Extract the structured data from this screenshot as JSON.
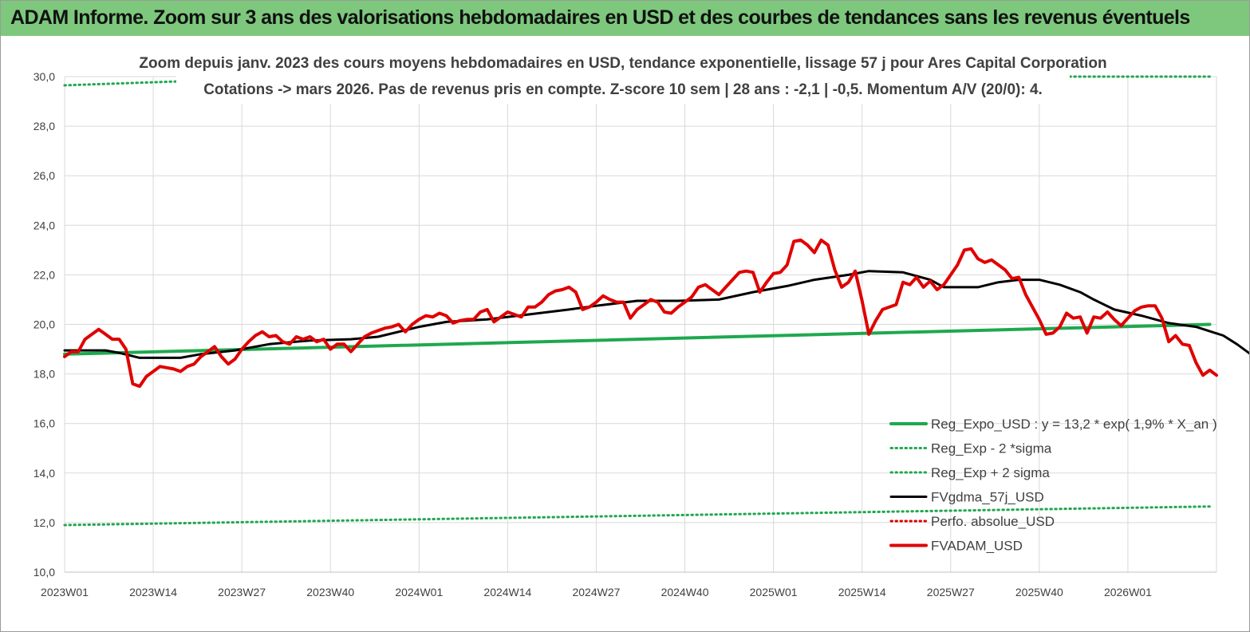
{
  "banner": {
    "title": "ADAM Informe. Zoom sur 3 ans des valorisations hebdomadaires en USD et des courbes de tendances sans les revenus éventuels"
  },
  "chart_data": {
    "type": "line",
    "title": "Zoom depuis janv.  2023 des cours moyens  hebdomadaires en USD, tendance exponentielle, lissage 57  j pour Ares Capital Corporation",
    "subtitle": "Cotations -> mars 2026. Pas de revenus pris en  compte. Z-score 10 sem  | 28 ans : -2,1  | -0,5. Momentum A/V (20/0): 4.",
    "xlabel": "",
    "ylabel": "",
    "ylim": [
      10,
      30
    ],
    "yticks": [
      "10,0",
      "12,0",
      "14,0",
      "16,0",
      "18,0",
      "20,0",
      "22,0",
      "24,0",
      "26,0",
      "28,0",
      "30,0"
    ],
    "x_tick_labels": [
      "2023W01",
      "2023W14",
      "2023W27",
      "2023W40",
      "2024W01",
      "2024W14",
      "2024W27",
      "2024W40",
      "2025W01",
      "2025W14",
      "2025W27",
      "2025W40",
      "2026W01"
    ],
    "weeks_count": 169,
    "grid": true,
    "legend_placement": "bottom-right",
    "series": [
      {
        "name": "Reg_Expo_USD : y = 13,2 * exp( 1,9% *  X_an )",
        "color": "#1fa84f",
        "style": "solid-thick",
        "points": [
          [
            0,
            18.8
          ],
          [
            168,
            20.0
          ]
        ]
      },
      {
        "name": "Reg_Exp - 2 *sigma",
        "color": "#1fa84f",
        "style": "dotted",
        "points": [
          [
            0,
            11.9
          ],
          [
            168,
            12.65
          ]
        ]
      },
      {
        "name": "Reg_Exp + 2 sigma",
        "color": "#1fa84f",
        "style": "dotted",
        "points": [
          [
            0,
            29.65
          ],
          [
            16,
            29.8
          ],
          [
            148,
            30.0
          ],
          [
            168,
            30.0
          ]
        ]
      },
      {
        "name": "FVgdma_57j_USD",
        "color": "#000000",
        "style": "solid",
        "points": [
          [
            0,
            18.95
          ],
          [
            6,
            18.95
          ],
          [
            8,
            18.85
          ],
          [
            11,
            18.65
          ],
          [
            17,
            18.65
          ],
          [
            20,
            18.8
          ],
          [
            25,
            18.95
          ],
          [
            30,
            19.2
          ],
          [
            36,
            19.35
          ],
          [
            42,
            19.4
          ],
          [
            46,
            19.5
          ],
          [
            52,
            19.9
          ],
          [
            56,
            20.1
          ],
          [
            62,
            20.2
          ],
          [
            68,
            20.4
          ],
          [
            74,
            20.6
          ],
          [
            78,
            20.75
          ],
          [
            84,
            20.95
          ],
          [
            90,
            20.95
          ],
          [
            96,
            21.0
          ],
          [
            101,
            21.3
          ],
          [
            106,
            21.55
          ],
          [
            110,
            21.8
          ],
          [
            115,
            22.0
          ],
          [
            118,
            22.15
          ],
          [
            123,
            22.1
          ],
          [
            127,
            21.8
          ],
          [
            129,
            21.5
          ],
          [
            134,
            21.5
          ],
          [
            137,
            21.7
          ],
          [
            140,
            21.8
          ],
          [
            143,
            21.8
          ],
          [
            146,
            21.6
          ],
          [
            149,
            21.3
          ],
          [
            151,
            21.0
          ],
          [
            154,
            20.6
          ],
          [
            158,
            20.35
          ],
          [
            162,
            20.05
          ],
          [
            166,
            19.9
          ],
          [
            170,
            19.55
          ],
          [
            172,
            19.2
          ],
          [
            174,
            18.8
          ],
          [
            176,
            18.65
          ]
        ]
      },
      {
        "name": "Perfo. absolue_USD",
        "color": "#e00000",
        "style": "dotted",
        "points": []
      },
      {
        "name": "FVADAM_USD",
        "color": "#e00000",
        "style": "solid-thick",
        "points": [
          [
            0,
            18.7
          ],
          [
            1,
            18.9
          ],
          [
            2,
            18.9
          ],
          [
            3,
            19.4
          ],
          [
            4,
            19.6
          ],
          [
            5,
            19.8
          ],
          [
            6,
            19.6
          ],
          [
            7,
            19.4
          ],
          [
            8,
            19.4
          ],
          [
            9,
            19.0
          ],
          [
            10,
            17.6
          ],
          [
            11,
            17.5
          ],
          [
            12,
            17.9
          ],
          [
            13,
            18.1
          ],
          [
            14,
            18.3
          ],
          [
            15,
            18.25
          ],
          [
            16,
            18.2
          ],
          [
            17,
            18.1
          ],
          [
            18,
            18.3
          ],
          [
            19,
            18.4
          ],
          [
            20,
            18.7
          ],
          [
            21,
            18.9
          ],
          [
            22,
            19.1
          ],
          [
            23,
            18.7
          ],
          [
            24,
            18.4
          ],
          [
            25,
            18.6
          ],
          [
            26,
            19.0
          ],
          [
            27,
            19.3
          ],
          [
            28,
            19.55
          ],
          [
            29,
            19.7
          ],
          [
            30,
            19.5
          ],
          [
            31,
            19.55
          ],
          [
            32,
            19.3
          ],
          [
            33,
            19.2
          ],
          [
            34,
            19.5
          ],
          [
            35,
            19.4
          ],
          [
            36,
            19.5
          ],
          [
            37,
            19.3
          ],
          [
            38,
            19.4
          ],
          [
            39,
            19.0
          ],
          [
            40,
            19.2
          ],
          [
            41,
            19.2
          ],
          [
            42,
            18.9
          ],
          [
            43,
            19.2
          ],
          [
            44,
            19.5
          ],
          [
            45,
            19.65
          ],
          [
            46,
            19.75
          ],
          [
            47,
            19.85
          ],
          [
            48,
            19.9
          ],
          [
            49,
            20.0
          ],
          [
            50,
            19.7
          ],
          [
            51,
            20.0
          ],
          [
            52,
            20.2
          ],
          [
            53,
            20.35
          ],
          [
            54,
            20.3
          ],
          [
            55,
            20.45
          ],
          [
            56,
            20.35
          ],
          [
            57,
            20.05
          ],
          [
            58,
            20.15
          ],
          [
            59,
            20.2
          ],
          [
            60,
            20.2
          ],
          [
            61,
            20.5
          ],
          [
            62,
            20.6
          ],
          [
            63,
            20.1
          ],
          [
            64,
            20.3
          ],
          [
            65,
            20.5
          ],
          [
            66,
            20.4
          ],
          [
            67,
            20.3
          ],
          [
            68,
            20.7
          ],
          [
            69,
            20.7
          ],
          [
            70,
            20.9
          ],
          [
            71,
            21.2
          ],
          [
            72,
            21.35
          ],
          [
            73,
            21.4
          ],
          [
            74,
            21.5
          ],
          [
            75,
            21.3
          ],
          [
            76,
            20.6
          ],
          [
            77,
            20.7
          ],
          [
            78,
            20.9
          ],
          [
            79,
            21.15
          ],
          [
            80,
            21.0
          ],
          [
            81,
            20.9
          ],
          [
            82,
            20.9
          ],
          [
            83,
            20.25
          ],
          [
            84,
            20.6
          ],
          [
            85,
            20.8
          ],
          [
            86,
            21.0
          ],
          [
            87,
            20.9
          ],
          [
            88,
            20.5
          ],
          [
            89,
            20.45
          ],
          [
            90,
            20.7
          ],
          [
            91,
            20.9
          ],
          [
            92,
            21.1
          ],
          [
            93,
            21.5
          ],
          [
            94,
            21.6
          ],
          [
            95,
            21.4
          ],
          [
            96,
            21.2
          ],
          [
            97,
            21.5
          ],
          [
            98,
            21.8
          ],
          [
            99,
            22.1
          ],
          [
            100,
            22.15
          ],
          [
            101,
            22.1
          ],
          [
            102,
            21.3
          ],
          [
            103,
            21.7
          ],
          [
            104,
            22.05
          ],
          [
            105,
            22.1
          ],
          [
            106,
            22.4
          ],
          [
            107,
            23.35
          ],
          [
            108,
            23.4
          ],
          [
            109,
            23.2
          ],
          [
            110,
            22.9
          ],
          [
            111,
            23.4
          ],
          [
            112,
            23.2
          ],
          [
            113,
            22.2
          ],
          [
            114,
            21.5
          ],
          [
            115,
            21.7
          ],
          [
            116,
            22.15
          ],
          [
            117,
            20.95
          ],
          [
            118,
            19.6
          ],
          [
            119,
            20.15
          ],
          [
            120,
            20.6
          ],
          [
            121,
            20.7
          ],
          [
            122,
            20.8
          ],
          [
            123,
            21.7
          ],
          [
            124,
            21.6
          ],
          [
            125,
            21.9
          ],
          [
            126,
            21.5
          ],
          [
            127,
            21.75
          ],
          [
            128,
            21.4
          ],
          [
            129,
            21.6
          ],
          [
            130,
            22.0
          ],
          [
            131,
            22.4
          ],
          [
            132,
            23.0
          ],
          [
            133,
            23.05
          ],
          [
            134,
            22.65
          ],
          [
            135,
            22.5
          ],
          [
            136,
            22.6
          ],
          [
            137,
            22.4
          ],
          [
            138,
            22.2
          ],
          [
            139,
            21.85
          ],
          [
            140,
            21.9
          ],
          [
            141,
            21.2
          ],
          [
            142,
            20.7
          ],
          [
            143,
            20.2
          ],
          [
            144,
            19.6
          ],
          [
            145,
            19.65
          ],
          [
            146,
            19.9
          ],
          [
            147,
            20.45
          ],
          [
            148,
            20.25
          ],
          [
            149,
            20.3
          ],
          [
            150,
            19.65
          ],
          [
            151,
            20.3
          ],
          [
            152,
            20.25
          ],
          [
            153,
            20.5
          ],
          [
            154,
            20.2
          ],
          [
            155,
            19.95
          ],
          [
            156,
            20.25
          ],
          [
            157,
            20.55
          ],
          [
            158,
            20.7
          ],
          [
            159,
            20.75
          ],
          [
            160,
            20.75
          ],
          [
            161,
            20.25
          ],
          [
            162,
            19.3
          ],
          [
            163,
            19.55
          ],
          [
            164,
            19.2
          ],
          [
            165,
            19.15
          ],
          [
            166,
            18.45
          ],
          [
            167,
            17.95
          ],
          [
            168,
            18.15
          ],
          [
            169,
            17.95
          ]
        ]
      }
    ]
  }
}
